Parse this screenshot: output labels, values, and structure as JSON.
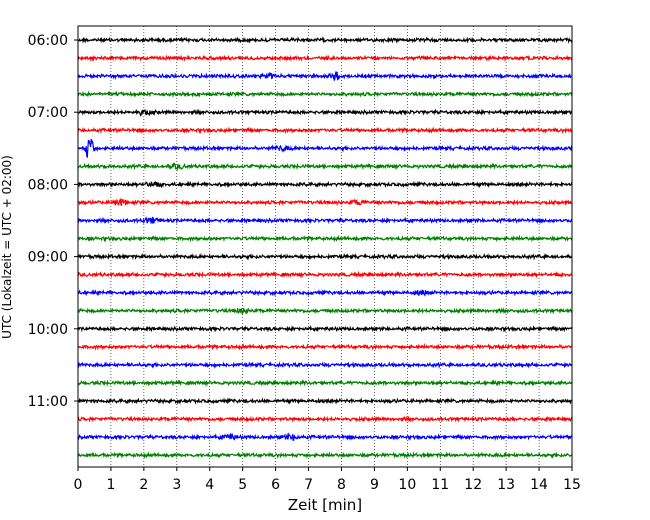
{
  "chart_data": {
    "type": "line",
    "title": "",
    "xlabel": "Zeit  [min]",
    "ylabel": "UTC (Lokalzeit = UTC + 02:00)",
    "xlim": [
      0,
      15
    ],
    "x_ticks": [
      "0",
      "1",
      "2",
      "3",
      "4",
      "5",
      "6",
      "7",
      "8",
      "9",
      "10",
      "11",
      "12",
      "13",
      "14",
      "15"
    ],
    "y_tick_labels": [
      "06:00",
      "07:00",
      "08:00",
      "09:00",
      "10:00",
      "11:00"
    ],
    "grid": "vertical dotted",
    "trace_interval_min": 15,
    "start_time": "06:00",
    "colors": [
      "#000000",
      "#ff0000",
      "#0000ff",
      "#008000"
    ],
    "traces": [
      {
        "start": "06:00",
        "color": "#000000",
        "events": []
      },
      {
        "start": "06:15",
        "color": "#ff0000",
        "events": []
      },
      {
        "start": "06:30",
        "color": "#0000ff",
        "events": [
          {
            "minute": 5.8,
            "amp": 1.6
          },
          {
            "minute": 7.8,
            "amp": 4.0
          }
        ]
      },
      {
        "start": "06:45",
        "color": "#008000",
        "events": []
      },
      {
        "start": "07:00",
        "color": "#000000",
        "events": [
          {
            "minute": 2.0,
            "amp": 1.6
          }
        ]
      },
      {
        "start": "07:15",
        "color": "#ff0000",
        "events": []
      },
      {
        "start": "07:30",
        "color": "#0000ff",
        "events": [
          {
            "minute": 0.35,
            "amp": 10.0
          },
          {
            "minute": 6.2,
            "amp": 1.6
          }
        ]
      },
      {
        "start": "07:45",
        "color": "#008000",
        "events": [
          {
            "minute": 3.0,
            "amp": 1.4
          }
        ]
      },
      {
        "start": "08:00",
        "color": "#000000",
        "events": [
          {
            "minute": 2.3,
            "amp": 1.4
          }
        ]
      },
      {
        "start": "08:15",
        "color": "#ff0000",
        "events": [
          {
            "minute": 1.3,
            "amp": 2.0
          },
          {
            "minute": 8.5,
            "amp": 1.4
          }
        ]
      },
      {
        "start": "08:30",
        "color": "#0000ff",
        "events": [
          {
            "minute": 2.2,
            "amp": 1.6
          }
        ]
      },
      {
        "start": "08:45",
        "color": "#008000",
        "events": []
      },
      {
        "start": "09:00",
        "color": "#000000",
        "events": []
      },
      {
        "start": "09:15",
        "color": "#ff0000",
        "events": []
      },
      {
        "start": "09:30",
        "color": "#0000ff",
        "events": [
          {
            "minute": 10.5,
            "amp": 1.4
          }
        ]
      },
      {
        "start": "09:45",
        "color": "#008000",
        "events": [
          {
            "minute": 5.0,
            "amp": 1.4
          }
        ]
      },
      {
        "start": "10:00",
        "color": "#000000",
        "events": []
      },
      {
        "start": "10:15",
        "color": "#ff0000",
        "events": []
      },
      {
        "start": "10:30",
        "color": "#0000ff",
        "events": []
      },
      {
        "start": "10:45",
        "color": "#008000",
        "events": []
      },
      {
        "start": "11:00",
        "color": "#000000",
        "events": []
      },
      {
        "start": "11:15",
        "color": "#ff0000",
        "events": []
      },
      {
        "start": "11:30",
        "color": "#0000ff",
        "events": [
          {
            "minute": 4.6,
            "amp": 1.5
          },
          {
            "minute": 6.5,
            "amp": 1.8
          }
        ]
      },
      {
        "start": "11:45",
        "color": "#008000",
        "events": []
      }
    ]
  }
}
